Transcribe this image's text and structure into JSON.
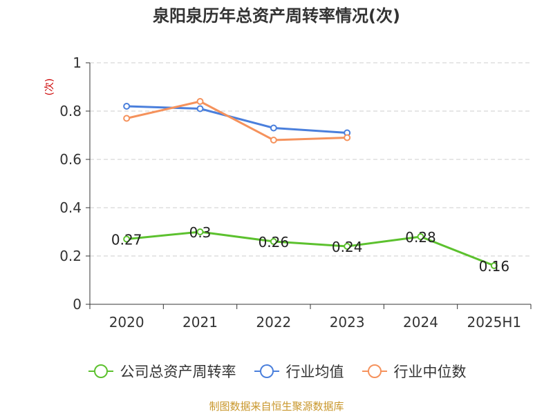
{
  "chart_data": {
    "type": "line",
    "title": "泉阳泉历年总资产周转率情况(次)",
    "ylabel": "(次)",
    "ylim": [
      0,
      1
    ],
    "yticks": [
      "0",
      "0.2",
      "0.4",
      "0.6",
      "0.8",
      "1"
    ],
    "categories": [
      "2020",
      "2021",
      "2022",
      "2023",
      "2024",
      "2025H1"
    ],
    "grid": true,
    "legend_position": "bottom",
    "series": [
      {
        "name": "公司总资产周转率",
        "color": "#5cc12e",
        "values": [
          0.27,
          0.3,
          0.26,
          0.24,
          0.28,
          0.16
        ],
        "labels": [
          "0.27",
          "0.3",
          "0.26",
          "0.24",
          "0.28",
          "0.16"
        ]
      },
      {
        "name": "行业均值",
        "color": "#4a7fdc",
        "values": [
          0.82,
          0.81,
          0.73,
          0.71,
          null,
          null
        ]
      },
      {
        "name": "行业中位数",
        "color": "#f5925c",
        "values": [
          0.77,
          0.84,
          0.68,
          0.69,
          null,
          null
        ]
      }
    ],
    "source": "制图数据来自恒生聚源数据库"
  }
}
